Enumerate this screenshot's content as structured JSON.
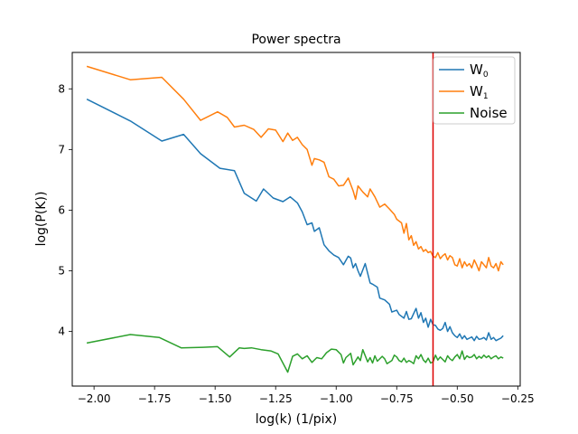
{
  "chart_data": {
    "type": "line",
    "title": "Power spectra",
    "xlabel": "log(k) (1/pix)",
    "ylabel": "log(P(K))",
    "xlim": [
      -2.09,
      -0.24
    ],
    "ylim": [
      3.1,
      8.6
    ],
    "xticks": [
      -2.0,
      -1.75,
      -1.5,
      -1.25,
      -1.0,
      -0.75,
      -0.5,
      -0.25
    ],
    "xtick_labels": [
      "−2.00",
      "−1.75",
      "−1.50",
      "−1.25",
      "−1.00",
      "−0.75",
      "−0.50",
      "−0.25"
    ],
    "yticks": [
      4,
      5,
      6,
      7,
      8
    ],
    "ytick_labels": [
      "4",
      "5",
      "6",
      "7",
      "8"
    ],
    "legend_position": "top-right",
    "vline": {
      "x": -0.6,
      "color": "#dd0000"
    },
    "series": [
      {
        "name": "W",
        "sub": "0",
        "color": "#1f77b4",
        "x": [
          -2.03,
          -1.85,
          -1.72,
          -1.63,
          -1.56,
          -1.48,
          -1.42,
          -1.38,
          -1.33,
          -1.3,
          -1.26,
          -1.22,
          -1.19,
          -1.16,
          -1.14,
          -1.12,
          -1.1,
          -1.09,
          -1.07,
          -1.05,
          -1.03,
          -1.01,
          -0.99,
          -0.97,
          -0.95,
          -0.94,
          -0.93,
          -0.92,
          -0.91,
          -0.9,
          -0.88,
          -0.86,
          -0.85,
          -0.83,
          -0.82,
          -0.8,
          -0.78,
          -0.77,
          -0.75,
          -0.74,
          -0.72,
          -0.71,
          -0.7,
          -0.69,
          -0.67,
          -0.66,
          -0.65,
          -0.64,
          -0.63,
          -0.62,
          -0.61,
          -0.6,
          -0.59,
          -0.58,
          -0.57,
          -0.56,
          -0.55,
          -0.54,
          -0.53,
          -0.52,
          -0.51,
          -0.5,
          -0.49,
          -0.48,
          -0.47,
          -0.46,
          -0.45,
          -0.44,
          -0.43,
          -0.42,
          -0.41,
          -0.4,
          -0.39,
          -0.38,
          -0.37,
          -0.36,
          -0.35,
          -0.34,
          -0.33,
          -0.32,
          -0.31
        ],
        "y": [
          7.83,
          7.47,
          7.14,
          7.25,
          6.93,
          6.69,
          6.65,
          6.28,
          6.15,
          6.35,
          6.2,
          6.14,
          6.22,
          6.12,
          5.97,
          5.76,
          5.79,
          5.65,
          5.71,
          5.43,
          5.33,
          5.26,
          5.22,
          5.1,
          5.24,
          5.21,
          5.05,
          5.12,
          5.0,
          4.91,
          5.12,
          4.8,
          4.78,
          4.73,
          4.55,
          4.52,
          4.45,
          4.32,
          4.35,
          4.28,
          4.22,
          4.33,
          4.2,
          4.21,
          4.38,
          4.22,
          4.31,
          4.15,
          4.22,
          4.07,
          4.2,
          4.11,
          4.1,
          4.04,
          4.02,
          4.05,
          4.15,
          4.0,
          4.08,
          3.98,
          3.93,
          3.9,
          3.96,
          3.88,
          3.93,
          3.87,
          3.89,
          3.91,
          3.85,
          3.92,
          3.87,
          3.88,
          3.9,
          3.86,
          3.98,
          3.87,
          3.9,
          3.85,
          3.87,
          3.89,
          3.93
        ]
      },
      {
        "name": "W",
        "sub": "1",
        "color": "#ff7f0e",
        "x": [
          -2.03,
          -1.85,
          -1.72,
          -1.63,
          -1.56,
          -1.49,
          -1.45,
          -1.42,
          -1.38,
          -1.34,
          -1.31,
          -1.28,
          -1.25,
          -1.22,
          -1.2,
          -1.18,
          -1.16,
          -1.14,
          -1.12,
          -1.1,
          -1.09,
          -1.07,
          -1.05,
          -1.03,
          -1.01,
          -0.99,
          -0.97,
          -0.95,
          -0.93,
          -0.92,
          -0.91,
          -0.89,
          -0.87,
          -0.86,
          -0.84,
          -0.82,
          -0.8,
          -0.78,
          -0.76,
          -0.75,
          -0.73,
          -0.72,
          -0.71,
          -0.7,
          -0.69,
          -0.68,
          -0.67,
          -0.66,
          -0.65,
          -0.64,
          -0.63,
          -0.62,
          -0.61,
          -0.6,
          -0.59,
          -0.58,
          -0.57,
          -0.56,
          -0.55,
          -0.54,
          -0.53,
          -0.52,
          -0.51,
          -0.5,
          -0.49,
          -0.48,
          -0.47,
          -0.46,
          -0.45,
          -0.44,
          -0.43,
          -0.42,
          -0.41,
          -0.4,
          -0.39,
          -0.38,
          -0.37,
          -0.36,
          -0.35,
          -0.34,
          -0.33,
          -0.32,
          -0.31
        ],
        "y": [
          8.37,
          8.15,
          8.19,
          7.83,
          7.48,
          7.62,
          7.53,
          7.37,
          7.4,
          7.33,
          7.2,
          7.34,
          7.32,
          7.13,
          7.27,
          7.15,
          7.2,
          7.08,
          7.0,
          6.74,
          6.85,
          6.83,
          6.79,
          6.55,
          6.51,
          6.4,
          6.41,
          6.53,
          6.32,
          6.18,
          6.4,
          6.3,
          6.22,
          6.35,
          6.22,
          6.05,
          6.1,
          6.02,
          5.93,
          5.85,
          5.79,
          5.62,
          5.78,
          5.51,
          5.58,
          5.42,
          5.48,
          5.36,
          5.4,
          5.32,
          5.35,
          5.3,
          5.32,
          5.24,
          5.22,
          5.3,
          5.2,
          5.25,
          5.28,
          5.18,
          5.25,
          5.22,
          5.1,
          5.08,
          5.2,
          5.05,
          5.15,
          5.08,
          5.12,
          5.05,
          5.18,
          5.1,
          5.0,
          5.15,
          5.1,
          5.05,
          5.22,
          5.08,
          5.05,
          5.12,
          5.0,
          5.15,
          5.1
        ]
      },
      {
        "name": "Noise",
        "sub": "",
        "color": "#2ca02c",
        "x": [
          -2.03,
          -1.85,
          -1.73,
          -1.64,
          -1.55,
          -1.49,
          -1.44,
          -1.4,
          -1.38,
          -1.35,
          -1.31,
          -1.27,
          -1.24,
          -1.2,
          -1.18,
          -1.16,
          -1.14,
          -1.12,
          -1.1,
          -1.08,
          -1.06,
          -1.04,
          -1.02,
          -1.0,
          -0.98,
          -0.97,
          -0.96,
          -0.94,
          -0.93,
          -0.91,
          -0.9,
          -0.89,
          -0.87,
          -0.86,
          -0.85,
          -0.84,
          -0.83,
          -0.81,
          -0.8,
          -0.79,
          -0.77,
          -0.76,
          -0.75,
          -0.74,
          -0.73,
          -0.72,
          -0.71,
          -0.7,
          -0.69,
          -0.68,
          -0.67,
          -0.66,
          -0.65,
          -0.64,
          -0.63,
          -0.62,
          -0.61,
          -0.6,
          -0.59,
          -0.58,
          -0.57,
          -0.56,
          -0.55,
          -0.54,
          -0.53,
          -0.52,
          -0.51,
          -0.5,
          -0.49,
          -0.48,
          -0.47,
          -0.46,
          -0.45,
          -0.44,
          -0.43,
          -0.42,
          -0.41,
          -0.4,
          -0.39,
          -0.38,
          -0.37,
          -0.36,
          -0.35,
          -0.34,
          -0.33,
          -0.32,
          -0.31
        ],
        "y": [
          3.81,
          3.95,
          3.9,
          3.73,
          3.74,
          3.75,
          3.58,
          3.73,
          3.72,
          3.73,
          3.7,
          3.68,
          3.63,
          3.33,
          3.59,
          3.63,
          3.55,
          3.6,
          3.49,
          3.57,
          3.55,
          3.65,
          3.71,
          3.7,
          3.62,
          3.48,
          3.57,
          3.64,
          3.45,
          3.58,
          3.52,
          3.7,
          3.5,
          3.57,
          3.48,
          3.6,
          3.51,
          3.59,
          3.55,
          3.47,
          3.52,
          3.61,
          3.58,
          3.52,
          3.5,
          3.56,
          3.49,
          3.52,
          3.5,
          3.47,
          3.6,
          3.55,
          3.62,
          3.53,
          3.49,
          3.56,
          3.48,
          3.5,
          3.61,
          3.53,
          3.58,
          3.54,
          3.5,
          3.6,
          3.55,
          3.52,
          3.58,
          3.62,
          3.55,
          3.68,
          3.54,
          3.6,
          3.57,
          3.58,
          3.62,
          3.55,
          3.59,
          3.56,
          3.61,
          3.57,
          3.6,
          3.55,
          3.58,
          3.6,
          3.55,
          3.58,
          3.56
        ]
      }
    ]
  }
}
